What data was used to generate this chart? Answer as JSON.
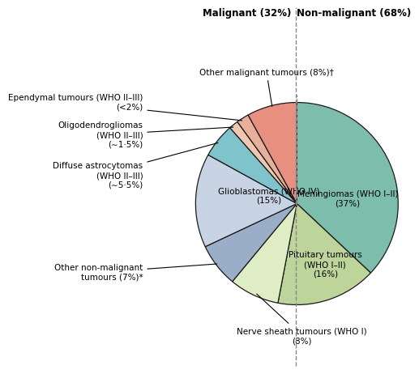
{
  "title_malignant": "Malignant (32%)",
  "title_non_malignant": "Non-malignant (68%)",
  "wedge_values": [
    37,
    16,
    8,
    7,
    15,
    5.5,
    1.5,
    2,
    8
  ],
  "wedge_colors": [
    "#7dbdab",
    "#bdd49a",
    "#deedc4",
    "#9baec8",
    "#c8d3e3",
    "#7ec4ca",
    "#f0c8b2",
    "#e8b09a",
    "#e89080"
  ],
  "wedge_labels": [
    "Meningiomas (WHO I–II)\n(37%)",
    "Pituitary tumours\n(WHO I–II)\n(16%)",
    "Nerve sheath tumours (WHO I)\n(8%)",
    "Other non-malignant\ntumours (7%)*",
    "Glioblastomas (WHO IV)\n(15%)",
    "Diffuse astrocytomas\n(WHO II–III)\n(∼5·5%)",
    "Oligodendrogliomas\n(WHO II–III)\n(∼1·5%)",
    "Ependymal tumours (WHO II–III)\n(<2%)",
    "Other malignant tumours (8%)†"
  ],
  "background_color": "#ffffff",
  "edge_color": "#1a1a1a",
  "font_size": 7.5
}
